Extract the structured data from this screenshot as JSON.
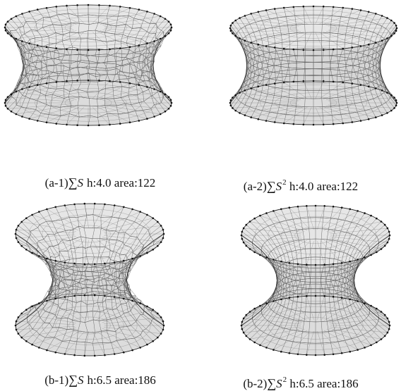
{
  "figures": [
    {
      "id": "a-1",
      "tag": "(a-1)",
      "sum_symbol": "∑",
      "variable": "S",
      "exponent": "",
      "height_text": "h:4.0",
      "area_text": "area:122",
      "mesh": "irregular"
    },
    {
      "id": "a-2",
      "tag": "(a-2)",
      "sum_symbol": "∑",
      "variable": "S",
      "exponent": "2",
      "height_text": "h:4.0",
      "area_text": "area:122",
      "mesh": "regular"
    },
    {
      "id": "b-1",
      "tag": "(b-1)",
      "sum_symbol": "∑",
      "variable": "S",
      "exponent": "",
      "height_text": "h:6.5",
      "area_text": "area:186",
      "mesh": "irregular"
    },
    {
      "id": "b-2",
      "tag": "(b-2)",
      "sum_symbol": "∑",
      "variable": "S",
      "exponent": "2",
      "height_text": "h:6.5",
      "area_text": "area:186",
      "mesh": "regular"
    }
  ],
  "colors": {
    "surface_fill": "#d6d6d6",
    "mesh_line": "#4a4a4a",
    "boundary_point": "#111111",
    "background": "#ffffff"
  }
}
